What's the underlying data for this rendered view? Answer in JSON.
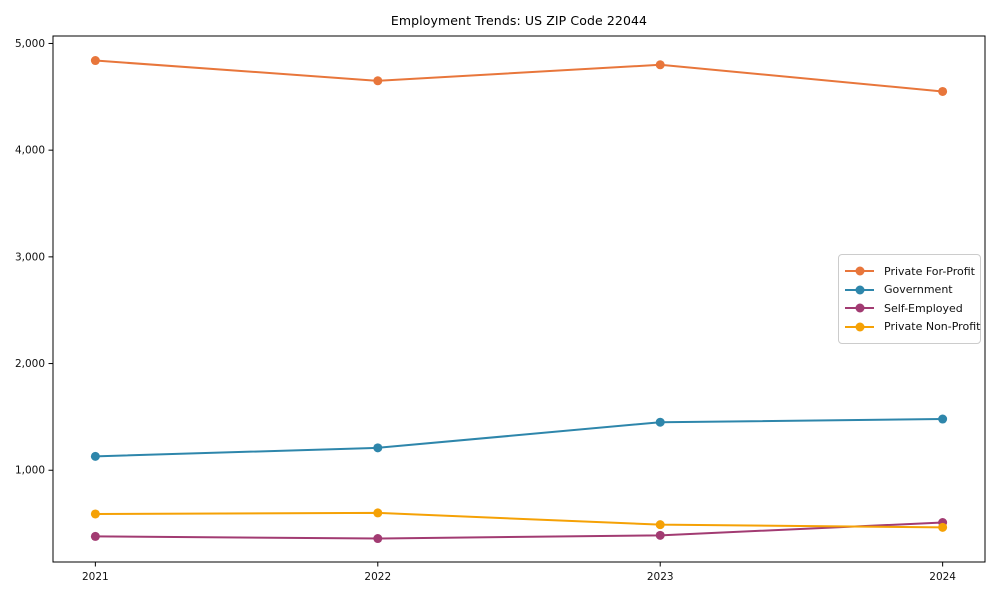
{
  "chart_data": {
    "type": "line",
    "title": "Employment Trends: US ZIP Code 22044",
    "categories": [
      "2021",
      "2022",
      "2023",
      "2024"
    ],
    "series": [
      {
        "name": "Private For-Profit",
        "color": "#E8763B",
        "values": [
          4840,
          4650,
          4800,
          4550
        ]
      },
      {
        "name": "Government",
        "color": "#2E86AB",
        "values": [
          1130,
          1210,
          1450,
          1480
        ]
      },
      {
        "name": "Self-Employed",
        "color": "#A23B72",
        "values": [
          380,
          360,
          390,
          510
        ]
      },
      {
        "name": "Private Non-Profit",
        "color": "#F5A105",
        "values": [
          590,
          600,
          490,
          465
        ]
      }
    ],
    "xlabel": "",
    "ylabel": "",
    "yticks": [
      1000,
      2000,
      3000,
      4000,
      5000
    ],
    "ytick_labels": [
      "1,000",
      "2,000",
      "3,000",
      "4,000",
      "5,000"
    ],
    "ylim": [
      140,
      5070
    ],
    "grid": false,
    "legend_position": "center-right",
    "marker": "circle",
    "axis_color": "#000000"
  }
}
